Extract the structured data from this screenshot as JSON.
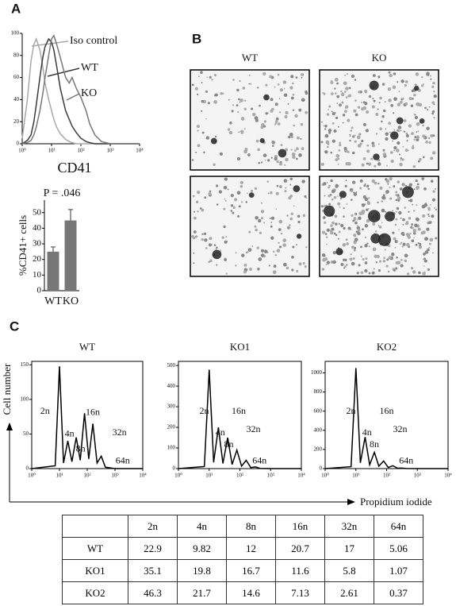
{
  "panel_labels": [
    "A",
    "B",
    "C"
  ],
  "chart_data": [
    {
      "type": "line",
      "log_x": true,
      "xlabel": "CD41",
      "x": [
        1,
        1.5,
        2,
        2.5,
        3,
        4,
        5,
        6,
        8,
        10,
        12,
        15,
        20,
        30,
        40,
        50,
        70,
        100,
        150,
        200,
        300,
        500,
        1000
      ],
      "series": [
        {
          "name": "Iso control",
          "color": "#a8a8a8",
          "values": [
            5,
            40,
            75,
            90,
            95,
            85,
            70,
            55,
            40,
            30,
            22,
            15,
            9,
            4,
            2,
            1,
            0,
            0,
            0,
            0,
            0,
            0,
            0
          ]
        },
        {
          "name": "WT",
          "color": "#3a3a3a",
          "values": [
            0,
            3,
            8,
            20,
            35,
            60,
            78,
            88,
            95,
            92,
            85,
            70,
            50,
            30,
            22,
            16,
            10,
            5,
            2,
            1,
            0,
            0,
            0
          ]
        },
        {
          "name": "KO",
          "color": "#777777",
          "values": [
            0,
            1,
            3,
            8,
            15,
            30,
            45,
            60,
            80,
            95,
            98,
            90,
            78,
            60,
            55,
            60,
            50,
            42,
            30,
            18,
            8,
            2,
            0
          ]
        }
      ],
      "xlim": [
        1,
        10000
      ],
      "xticks": [
        {
          "value": 1,
          "label": "10⁰"
        },
        {
          "value": 10,
          "label": "10¹"
        },
        {
          "value": 100,
          "label": "10²"
        },
        {
          "value": 1000,
          "label": "10³"
        },
        {
          "value": 10000,
          "label": "10⁴"
        }
      ],
      "ylim": [
        0,
        100
      ],
      "yticks": [
        0,
        20,
        40,
        60,
        80,
        100
      ]
    },
    {
      "type": "bar",
      "ylabel": "%CD41+ cells",
      "annotation": "P = .046",
      "categories": [
        "WT",
        "KO"
      ],
      "values": [
        25,
        45
      ],
      "errors": [
        3,
        7
      ],
      "color": "#777777",
      "ylim": [
        0,
        58
      ],
      "yticks": [
        0,
        10,
        20,
        30,
        40,
        50
      ]
    },
    {
      "type": "line",
      "log_x": true,
      "title": "WT",
      "color": "#000000",
      "x": [
        1,
        7,
        10,
        14,
        20,
        28,
        40,
        56,
        80,
        113,
        160,
        226,
        320,
        450,
        1000,
        10000
      ],
      "values": [
        0,
        4,
        148,
        8,
        40,
        10,
        45,
        12,
        80,
        14,
        65,
        8,
        18,
        2,
        0,
        0
      ],
      "annotations": [
        "2n",
        "4n",
        "8n",
        "16n",
        "32n",
        "64n"
      ],
      "xlim": [
        1,
        10000
      ],
      "xticks": [
        {
          "value": 1,
          "label": "10⁰"
        },
        {
          "value": 10,
          "label": "10¹"
        },
        {
          "value": 100,
          "label": "10²"
        },
        {
          "value": 1000,
          "label": "10³"
        },
        {
          "value": 10000,
          "label": "10⁴"
        }
      ],
      "ylim": [
        0,
        155
      ],
      "yticks": [
        0,
        50,
        100,
        150
      ]
    },
    {
      "type": "line",
      "log_x": true,
      "title": "KO1",
      "color": "#000000",
      "x": [
        1,
        7,
        10,
        14,
        20,
        28,
        40,
        56,
        80,
        113,
        160,
        226,
        320,
        450,
        1000,
        10000
      ],
      "values": [
        0,
        10,
        480,
        30,
        200,
        25,
        150,
        20,
        90,
        12,
        40,
        5,
        8,
        1,
        0,
        0
      ],
      "annotations": [
        "2n",
        "4n",
        "8n",
        "16n",
        "32n",
        "64n"
      ],
      "xlim": [
        1,
        10000
      ],
      "xticks": [
        {
          "value": 1,
          "label": "10⁰"
        },
        {
          "value": 10,
          "label": "10¹"
        },
        {
          "value": 100,
          "label": "10²"
        },
        {
          "value": 1000,
          "label": "10³"
        },
        {
          "value": 10000,
          "label": "10⁴"
        }
      ],
      "ylim": [
        0,
        520
      ],
      "yticks": [
        0,
        100,
        200,
        300,
        400,
        500
      ]
    },
    {
      "type": "line",
      "log_x": true,
      "title": "KO2",
      "color": "#000000",
      "x": [
        1,
        7,
        10,
        14,
        20,
        28,
        40,
        56,
        80,
        113,
        160,
        226,
        320,
        450,
        1000,
        10000
      ],
      "values": [
        0,
        20,
        1050,
        60,
        330,
        40,
        170,
        25,
        80,
        12,
        30,
        4,
        5,
        1,
        0,
        0
      ],
      "annotations": [
        "2n",
        "4n",
        "8n",
        "16n",
        "32n",
        "64n"
      ],
      "xlim": [
        1,
        10000
      ],
      "xticks": [
        {
          "value": 1,
          "label": "10⁰"
        },
        {
          "value": 10,
          "label": "10¹"
        },
        {
          "value": 100,
          "label": "10²"
        },
        {
          "value": 1000,
          "label": "10³"
        },
        {
          "value": 10000,
          "label": "10⁴"
        }
      ],
      "ylim": [
        0,
        1120
      ],
      "yticks": [
        0,
        200,
        400,
        600,
        800,
        1000
      ]
    }
  ],
  "micrograph_columns": [
    "WT",
    "KO"
  ],
  "axis_labels": {
    "y": "Cell number",
    "x": "Propidium iodide"
  },
  "table": {
    "columns": [
      "2n",
      "4n",
      "8n",
      "16n",
      "32n",
      "64n"
    ],
    "rows": [
      {
        "label": "WT",
        "values": [
          22.9,
          9.82,
          12,
          20.7,
          17,
          5.06
        ]
      },
      {
        "label": "KO1",
        "values": [
          35.1,
          19.8,
          16.7,
          11.6,
          5.8,
          1.07
        ]
      },
      {
        "label": "KO2",
        "values": [
          46.3,
          21.7,
          14.6,
          7.13,
          2.61,
          0.37
        ]
      }
    ]
  }
}
